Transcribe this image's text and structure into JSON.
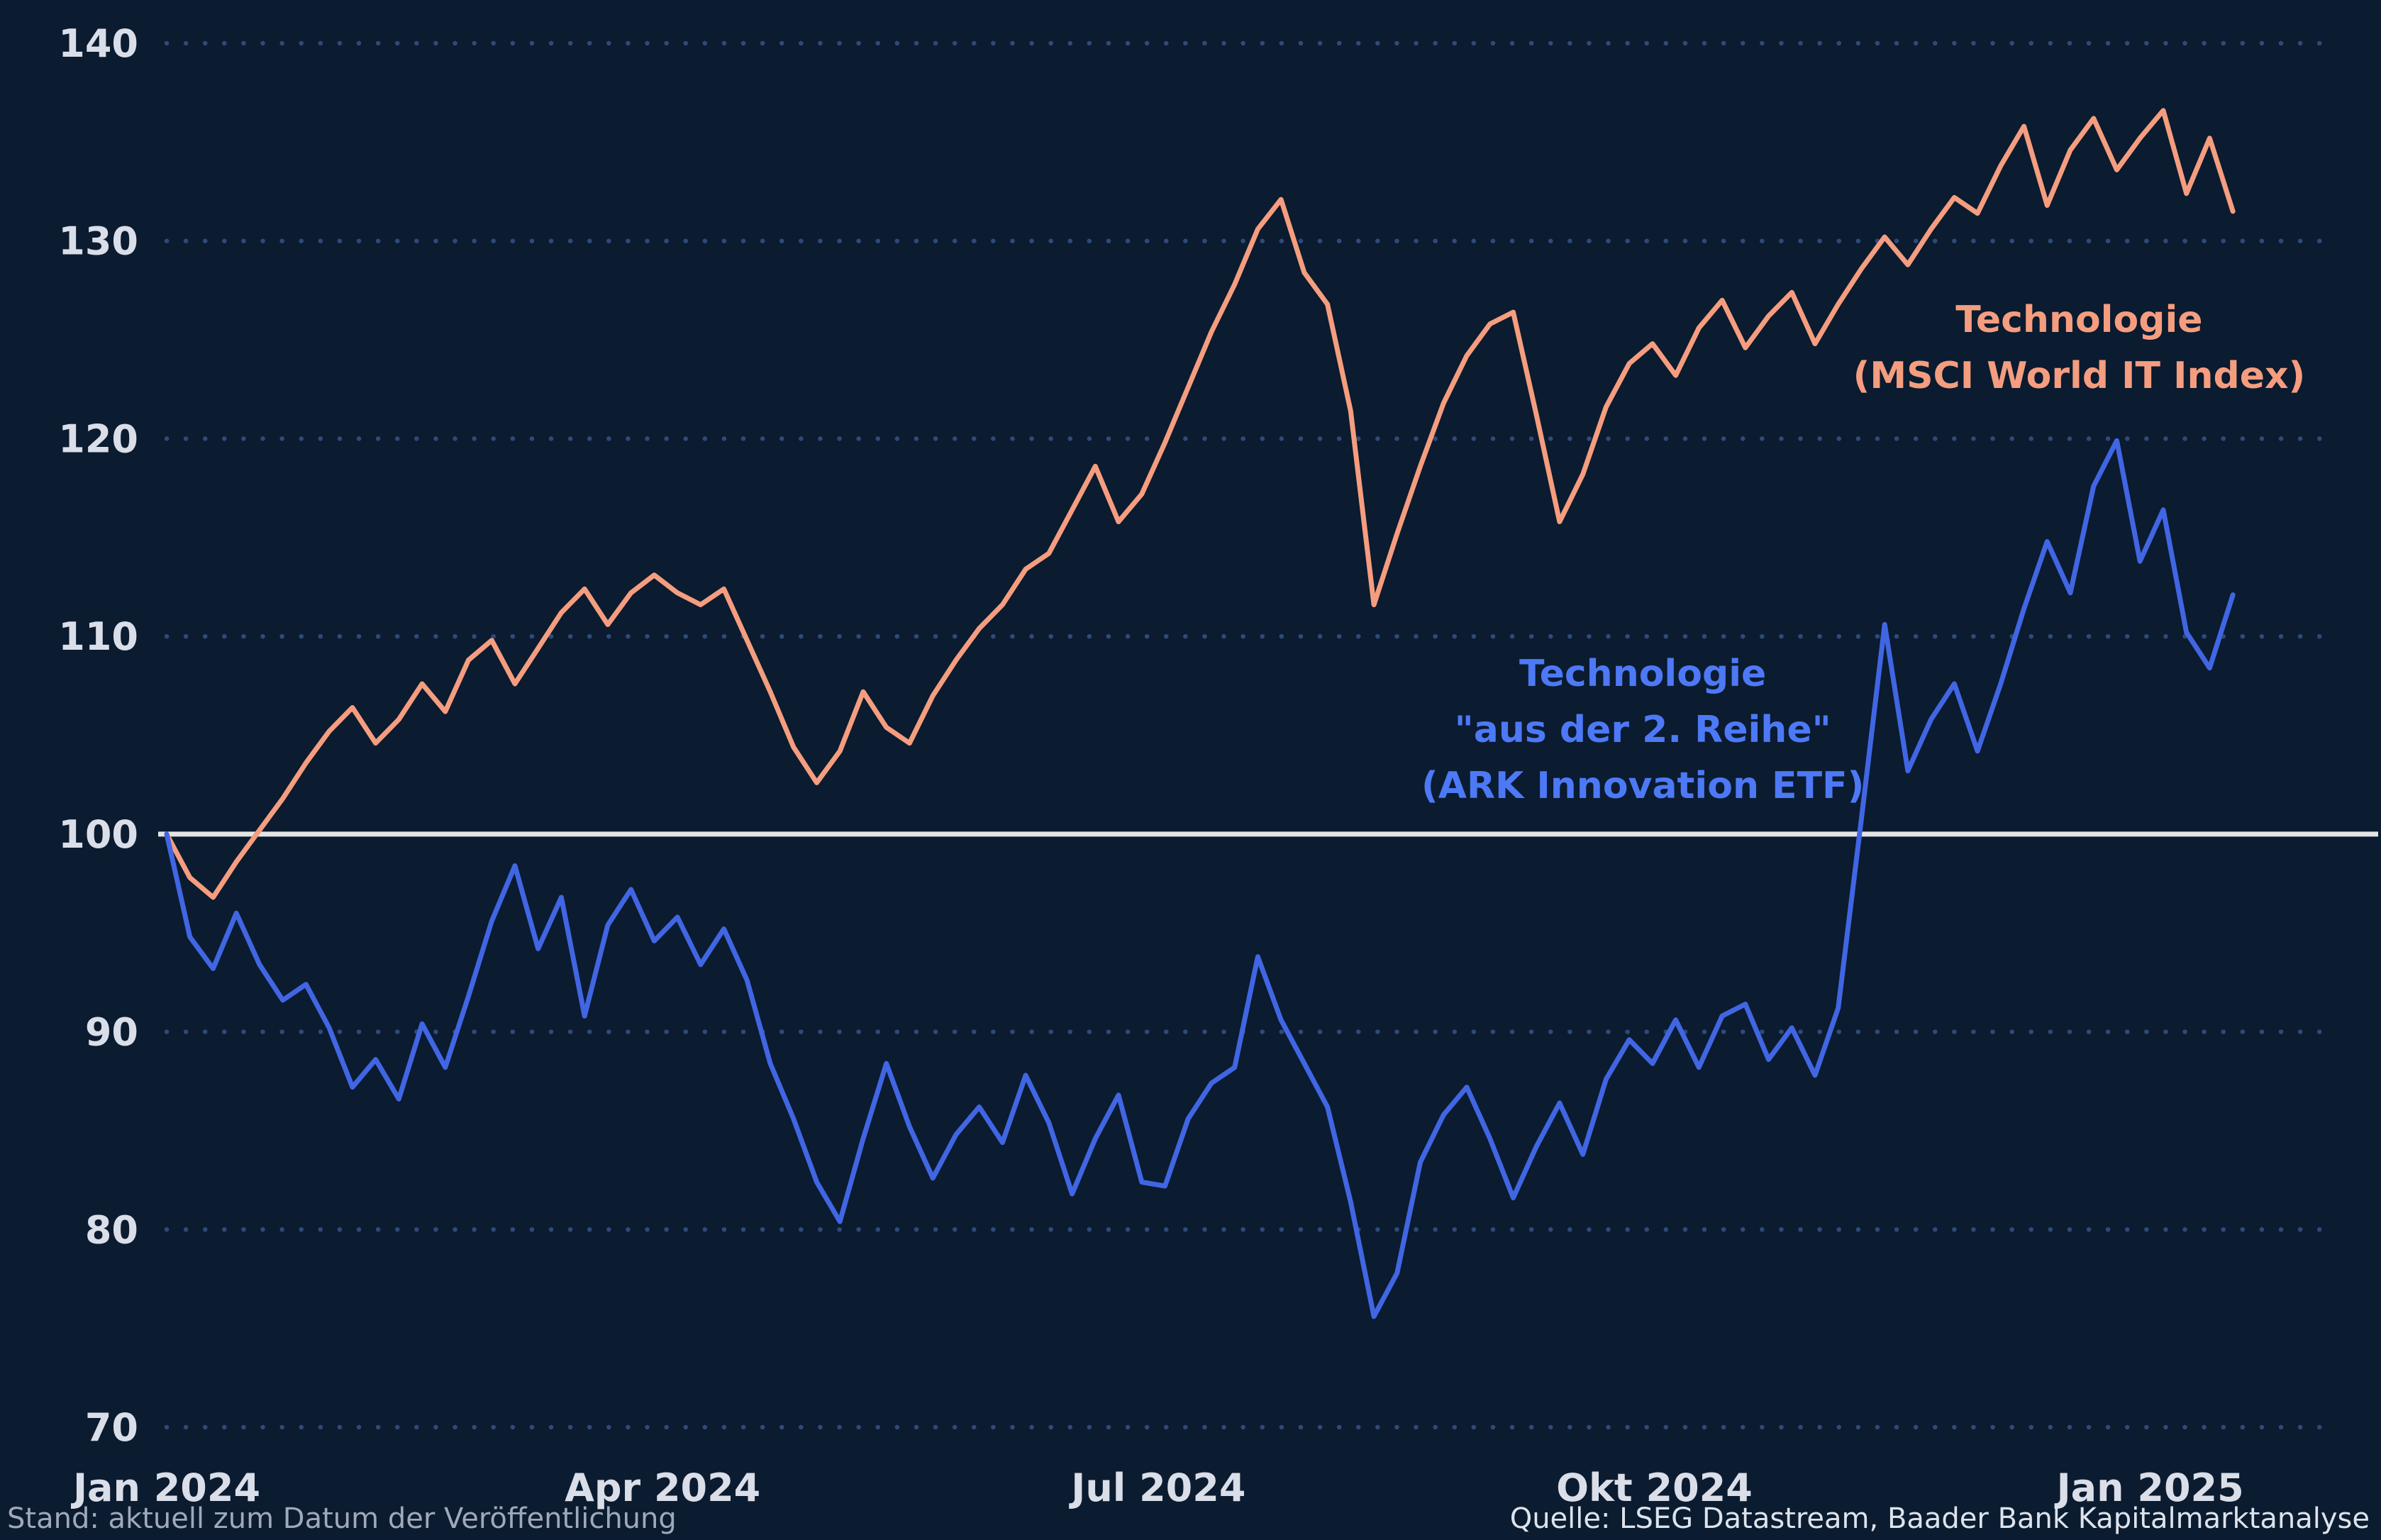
{
  "chart_data": {
    "type": "line",
    "title": "",
    "x_axis": {
      "total_months": 13.1,
      "data_months": 12.5,
      "ticks": [
        {
          "month": 0,
          "label": "Jan 2024"
        },
        {
          "month": 3,
          "label": "Apr 2024"
        },
        {
          "month": 6,
          "label": "Jul 2024"
        },
        {
          "month": 9,
          "label": "Okt 2024"
        },
        {
          "month": 12,
          "label": "Jan 2025"
        }
      ]
    },
    "y_axis": {
      "min": 70,
      "max": 140,
      "step": 10,
      "ticks": [
        140,
        130,
        120,
        110,
        100,
        90,
        80,
        70
      ]
    },
    "baseline": {
      "value": 100,
      "color": "#e4e4e4"
    },
    "grid": {
      "style": "dotted",
      "color": "#2e4a78"
    },
    "series": [
      {
        "id": "msci",
        "name": "Technologie (MSCI World IT Index)",
        "color": "#f59d7f",
        "values": [
          100,
          97.8,
          96.8,
          98.6,
          100.2,
          101.8,
          103.6,
          105.2,
          106.4,
          104.6,
          105.8,
          107.6,
          106.2,
          108.8,
          109.8,
          107.6,
          109.4,
          111.2,
          112.4,
          110.6,
          112.2,
          113.1,
          112.2,
          111.6,
          112.4,
          109.8,
          107.2,
          104.4,
          102.6,
          104.2,
          107.2,
          105.4,
          104.6,
          107.0,
          108.8,
          110.4,
          111.6,
          113.4,
          114.2,
          116.4,
          118.6,
          115.8,
          117.2,
          119.8,
          122.6,
          125.4,
          127.8,
          130.6,
          132.1,
          128.4,
          126.8,
          121.4,
          111.6,
          115.2,
          118.6,
          121.8,
          124.2,
          125.8,
          126.4,
          121.2,
          115.8,
          118.2,
          121.6,
          123.8,
          124.8,
          123.2,
          125.6,
          127.0,
          124.6,
          126.2,
          127.4,
          124.8,
          126.8,
          128.6,
          130.2,
          128.8,
          130.6,
          132.2,
          131.4,
          133.8,
          135.8,
          131.8,
          134.6,
          136.2,
          133.6,
          135.2,
          136.6,
          132.4,
          135.2,
          131.5
        ]
      },
      {
        "id": "ark",
        "name": "Technologie \"aus der 2. Reihe\" (ARK Innovation ETF)",
        "color": "#4166e3",
        "values": [
          100,
          94.8,
          93.2,
          96.0,
          93.4,
          91.6,
          92.4,
          90.2,
          87.2,
          88.6,
          86.6,
          90.4,
          88.2,
          91.8,
          95.6,
          98.4,
          94.2,
          96.8,
          90.8,
          95.4,
          97.2,
          94.6,
          95.8,
          93.4,
          95.2,
          92.6,
          88.4,
          85.6,
          82.4,
          80.4,
          84.6,
          88.4,
          85.2,
          82.6,
          84.8,
          86.2,
          84.4,
          87.8,
          85.4,
          81.8,
          84.6,
          86.8,
          82.4,
          82.2,
          85.6,
          87.4,
          88.2,
          93.8,
          90.6,
          88.4,
          86.2,
          81.4,
          75.6,
          77.8,
          83.4,
          85.8,
          87.2,
          84.6,
          81.6,
          84.2,
          86.4,
          83.8,
          87.6,
          89.6,
          88.4,
          90.6,
          88.2,
          90.8,
          91.4,
          88.6,
          90.2,
          87.8,
          91.2,
          100.8,
          110.6,
          103.2,
          105.8,
          107.6,
          104.2,
          107.6,
          111.4,
          114.8,
          112.2,
          117.6,
          119.9,
          113.8,
          116.4,
          110.2,
          108.4,
          112.1
        ]
      }
    ],
    "annotations": [
      {
        "id": "msci",
        "lines": [
          "Technologie",
          "(MSCI World IT Index)"
        ],
        "color": "#f59d7f",
        "x_month": 11.57,
        "y_value": 125.4
      },
      {
        "id": "ark",
        "lines": [
          "Technologie",
          "\"aus der 2. Reihe\"",
          "(ARK Innovation ETF)"
        ],
        "color": "#4d79f6",
        "x_month": 8.93,
        "y_value": 107.5
      }
    ],
    "legend_position": "inline-annotations",
    "background": "#0b1b30"
  },
  "footer": {
    "left": "Stand: aktuell zum Datum der Veröffentlichung",
    "right": "Quelle: LSEG Datastream, Baader Bank Kapitalmarktanalyse"
  },
  "colors": {
    "background": "#0b1b30",
    "axis_text": "#d9dee8",
    "grid": "#2e4a78",
    "baseline": "#e4e4e4",
    "series_msci": "#f59d7f",
    "series_ark": "#4166e3"
  }
}
